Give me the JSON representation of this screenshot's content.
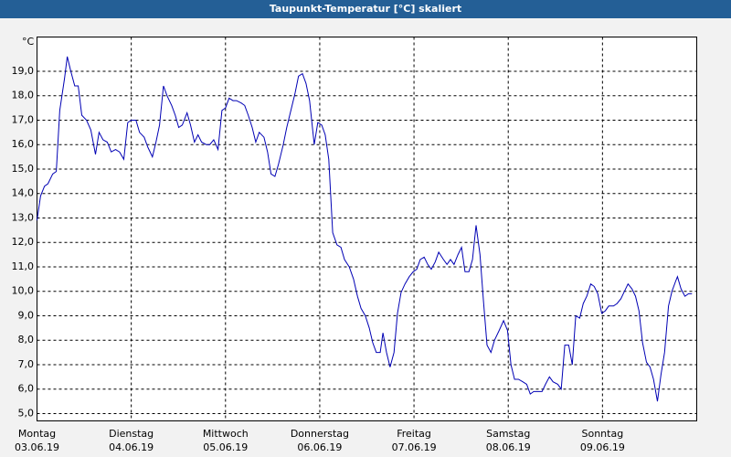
{
  "chart_data": {
    "type": "line",
    "title": "Taupunkt-Temperatur [°C] skaliert",
    "y_unit": "°C",
    "x": [
      0,
      0.9,
      1.9,
      2.8,
      4.0,
      4.9,
      5.8,
      7.0,
      7.7,
      8.6,
      9.6,
      10.5,
      11.4,
      12.6,
      13.7,
      14.9,
      15.8,
      16.8,
      17.9,
      18.9,
      20.0,
      21.0,
      22.1,
      23.1,
      24.0,
      25.2,
      26.1,
      27.3,
      28.2,
      29.4,
      30.3,
      31.2,
      32.2,
      33.1,
      34.3,
      35.2,
      36.1,
      37.0,
      38.2,
      39.1,
      40.1,
      41.0,
      41.9,
      43.1,
      44.0,
      45.0,
      46.1,
      47.1,
      48.0,
      48.9,
      49.9,
      50.8,
      52.0,
      52.9,
      53.8,
      54.8,
      55.7,
      56.6,
      57.8,
      58.7,
      59.6,
      60.6,
      61.5,
      62.7,
      63.6,
      64.8,
      65.7,
      66.6,
      67.6,
      68.5,
      69.4,
      70.6,
      71.5,
      72.5,
      73.4,
      74.3,
      75.3,
      76.4,
      77.4,
      78.3,
      79.5,
      80.6,
      81.6,
      82.5,
      83.6,
      84.6,
      85.5,
      86.4,
      87.4,
      88.1,
      89.0,
      89.9,
      90.9,
      91.8,
      92.7,
      93.7,
      94.8,
      95.8,
      96.7,
      97.6,
      98.6,
      99.5,
      100.4,
      101.4,
      102.3,
      103.5,
      104.4,
      105.3,
      106.2,
      107.2,
      108.1,
      109.0,
      110.0,
      110.9,
      111.8,
      112.8,
      113.7,
      114.6,
      115.6,
      116.5,
      117.7,
      118.8,
      119.8,
      120.7,
      121.6,
      122.6,
      123.7,
      124.7,
      125.6,
      126.5,
      127.5,
      128.6,
      129.5,
      130.5,
      131.4,
      132.6,
      133.5,
      134.4,
      135.4,
      136.3,
      137.2,
      138.2,
      139.1,
      140.0,
      141.0,
      141.9,
      142.8,
      143.8,
      144.7,
      145.6,
      146.8,
      147.7,
      148.7,
      149.6,
      150.5,
      151.5,
      152.4,
      153.3,
      154.2,
      155.2,
      156.1,
      157.0,
      158.0,
      158.9,
      159.8,
      160.8,
      161.7,
      162.6,
      163.1,
      164.0,
      165.0,
      165.9,
      166.8
    ],
    "series": [
      {
        "name": "Taupunkt-Temperatur",
        "color": "#0000b4",
        "values": [
          12.9,
          13.9,
          14.3,
          14.4,
          14.8,
          14.9,
          17.4,
          18.7,
          19.6,
          19.0,
          18.4,
          18.4,
          17.2,
          17.0,
          16.6,
          15.6,
          16.5,
          16.2,
          16.1,
          15.7,
          15.8,
          15.7,
          15.4,
          16.9,
          17.0,
          17.0,
          16.5,
          16.3,
          15.9,
          15.5,
          16.1,
          16.8,
          18.4,
          18.0,
          17.6,
          17.2,
          16.7,
          16.8,
          17.3,
          16.8,
          16.1,
          16.4,
          16.1,
          16.0,
          16.0,
          16.2,
          15.8,
          17.4,
          17.5,
          17.9,
          17.8,
          17.8,
          17.7,
          17.6,
          17.2,
          16.7,
          16.1,
          16.5,
          16.3,
          15.7,
          14.8,
          14.7,
          15.2,
          16.0,
          16.7,
          17.5,
          18.1,
          18.8,
          18.9,
          18.5,
          17.8,
          16.0,
          16.9,
          16.8,
          16.4,
          15.4,
          12.4,
          11.9,
          11.8,
          11.3,
          11.0,
          10.5,
          9.8,
          9.3,
          9.0,
          8.5,
          7.9,
          7.5,
          7.5,
          8.3,
          7.5,
          6.9,
          7.5,
          9.1,
          9.95,
          10.3,
          10.6,
          10.8,
          10.9,
          11.3,
          11.4,
          11.1,
          10.9,
          11.2,
          11.6,
          11.3,
          11.1,
          11.3,
          11.1,
          11.5,
          11.8,
          10.8,
          10.8,
          11.3,
          12.7,
          11.5,
          9.6,
          7.8,
          7.5,
          8.0,
          8.4,
          8.8,
          8.4,
          7.0,
          6.4,
          6.4,
          6.3,
          6.2,
          5.8,
          5.9,
          5.9,
          5.9,
          6.2,
          6.5,
          6.3,
          6.2,
          6.0,
          7.8,
          7.8,
          7.0,
          9.0,
          8.9,
          9.5,
          9.8,
          10.3,
          10.2,
          9.9,
          9.1,
          9.2,
          9.4,
          9.4,
          9.5,
          9.7,
          10.0,
          10.3,
          10.1,
          9.8,
          9.2,
          7.9,
          7.1,
          6.9,
          6.4,
          5.5,
          6.6,
          7.5,
          9.4,
          10.0,
          10.4,
          10.6,
          10.1,
          9.8,
          9.9,
          9.9
        ]
      }
    ],
    "xlim": [
      0,
      168
    ],
    "xticks": [
      {
        "value": 0,
        "label": "Montag"
      },
      {
        "value": 24,
        "label": "Dienstag"
      },
      {
        "value": 48,
        "label": "Mittwoch"
      },
      {
        "value": 72,
        "label": "Donnerstag"
      },
      {
        "value": 96,
        "label": "Freitag"
      },
      {
        "value": 120,
        "label": "Samstag"
      },
      {
        "value": 144,
        "label": "Sonntag"
      }
    ],
    "xtick_dates": [
      "03.06.19",
      "04.06.19",
      "05.06.19",
      "06.06.19",
      "07.06.19",
      "08.06.19",
      "09.06.19"
    ],
    "ylim": [
      4.7,
      20.4
    ],
    "yticks": [
      {
        "value": 5,
        "label": "5,0"
      },
      {
        "value": 6,
        "label": "6,0"
      },
      {
        "value": 7,
        "label": "7,0"
      },
      {
        "value": 8,
        "label": "8,0"
      },
      {
        "value": 9,
        "label": "9,0"
      },
      {
        "value": 10,
        "label": "10,0"
      },
      {
        "value": 11,
        "label": "11,0"
      },
      {
        "value": 12,
        "label": "12,0"
      },
      {
        "value": 13,
        "label": "13,0"
      },
      {
        "value": 14,
        "label": "14,0"
      },
      {
        "value": 15,
        "label": "15,0"
      },
      {
        "value": 16,
        "label": "16,0"
      },
      {
        "value": 17,
        "label": "17,0"
      },
      {
        "value": 18,
        "label": "18,0"
      },
      {
        "value": 19,
        "label": "19,0"
      }
    ],
    "grid": true
  }
}
